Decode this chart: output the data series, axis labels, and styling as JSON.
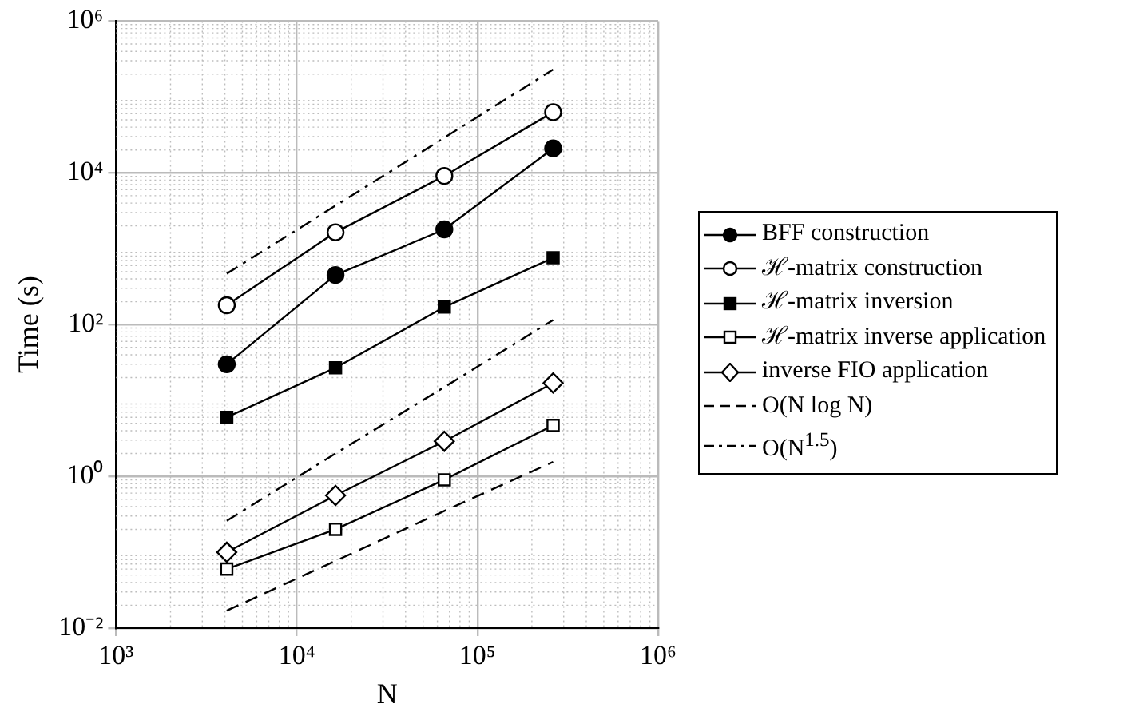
{
  "chart_data": {
    "type": "line",
    "xlabel": "N",
    "ylabel": "Time (s)",
    "log": "xy",
    "grid": true,
    "legend": "right",
    "xlim": [
      1000,
      1000000
    ],
    "xticks": [
      {
        "value": 1000,
        "label": "10³"
      },
      {
        "value": 10000,
        "label": "10⁴"
      },
      {
        "value": 100000,
        "label": "10⁵"
      },
      {
        "value": 1000000,
        "label": "10⁶"
      }
    ],
    "ylim": [
      0.01,
      1000000
    ],
    "yticks": [
      {
        "value": 0.01,
        "label": "10⁻²"
      },
      {
        "value": 1,
        "label": "10⁰"
      },
      {
        "value": 100,
        "label": "10²"
      },
      {
        "value": 10000,
        "label": "10⁴"
      },
      {
        "value": 1000000,
        "label": "10⁶"
      }
    ],
    "x": [
      4096,
      16384,
      65536,
      262144
    ],
    "series": [
      {
        "name": "BFF construction",
        "color": "#000000",
        "marker": "circle",
        "colors": [
          "#000000",
          "#000000",
          "#000000",
          "#000000"
        ],
        "line_style": "solid",
        "values": [
          30,
          450,
          1800,
          21000
        ]
      },
      {
        "name": "ℋ-matrix construction",
        "color": "#000000",
        "marker": "circle",
        "colors": [
          "#ffffff",
          "#ffffff",
          "#ffffff",
          "#ffffff"
        ],
        "line_style": "solid",
        "values": [
          180,
          1650,
          9100,
          63000
        ]
      },
      {
        "name": "ℋ-matrix inversion",
        "color": "#000000",
        "marker": "square",
        "colors": [
          "#000000",
          "#000000",
          "#000000",
          "#000000"
        ],
        "line_style": "solid",
        "values": [
          6,
          27,
          170,
          760
        ]
      },
      {
        "name": "ℋ-matrix inverse application",
        "color": "#000000",
        "marker": "square",
        "colors": [
          "#ffffff",
          "#ffffff",
          "#ffffff",
          "#ffffff"
        ],
        "line_style": "solid",
        "values": [
          0.06,
          0.2,
          0.9,
          4.7
        ]
      },
      {
        "name": "inverse FIO application",
        "color": "#000000",
        "marker": "diamond",
        "colors": [
          "#ffffff",
          "#ffffff",
          "#ffffff",
          "#ffffff"
        ],
        "line_style": "solid",
        "values": [
          0.1,
          0.56,
          2.9,
          17
        ]
      },
      {
        "name": "O(N log N)",
        "color": "#000000",
        "marker": "none",
        "line_style": "dashed",
        "values": [
          0.017,
          0.077,
          0.35,
          1.55
        ]
      },
      {
        "name": "O(N$^{1.5}$)",
        "color": "#000000",
        "marker": "none",
        "line_style": "dashdot",
        "values": [
          470,
          3700,
          29000,
          230000
        ]
      },
      {
        "color": "#000000",
        "marker": "none",
        "line_style": "dashdot",
        "values": [
          0.26,
          2,
          15,
          115
        ]
      }
    ]
  }
}
